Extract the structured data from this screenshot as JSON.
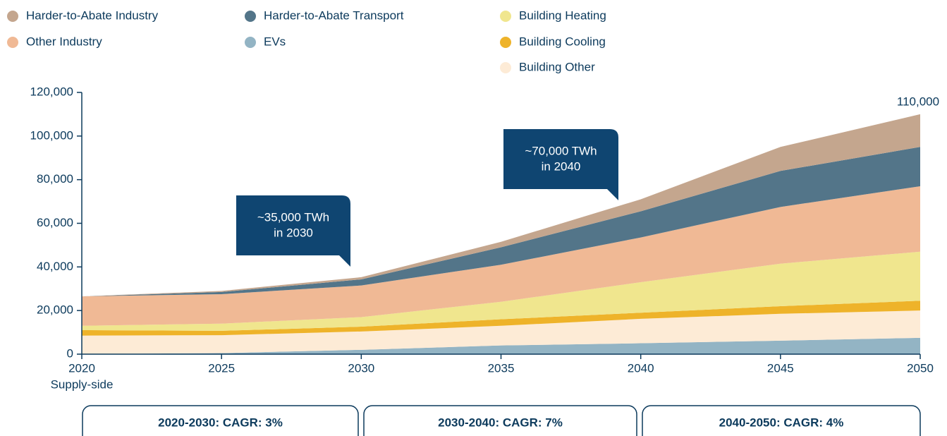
{
  "chart_data": {
    "type": "stacked_area",
    "x": [
      2020,
      2025,
      2030,
      2035,
      2040,
      2045,
      2050
    ],
    "xlim": [
      2020,
      2050
    ],
    "xticks": [
      2020,
      2025,
      2030,
      2035,
      2040,
      2045,
      2050
    ],
    "ylim": [
      0,
      120000
    ],
    "yticks": [
      0,
      {
        "value": 20000,
        "label": "20,000"
      },
      {
        "value": 40000,
        "label": "40,000"
      },
      {
        "value": 60000,
        "label": "60,000"
      },
      {
        "value": 80000,
        "label": "80,000"
      },
      {
        "value": 100000,
        "label": "100,000"
      },
      {
        "value": 120000,
        "label": "120,000"
      }
    ],
    "series": [
      {
        "name": "EVs",
        "color": "#93b4c4",
        "values": [
          0,
          500,
          2000,
          4000,
          5000,
          6200,
          7500
        ]
      },
      {
        "name": "Building Other",
        "color": "#fdebd6",
        "values": [
          8500,
          8200,
          8400,
          9000,
          11200,
          12300,
          12500
        ]
      },
      {
        "name": "Building Cooling",
        "color": "#eeb32a",
        "values": [
          2500,
          2000,
          2200,
          3000,
          2800,
          3500,
          4500
        ]
      },
      {
        "name": "Building Heating",
        "color": "#f0e68e",
        "values": [
          2000,
          3300,
          4400,
          8000,
          14000,
          19500,
          22500
        ]
      },
      {
        "name": "Other Industry",
        "color": "#f0b995",
        "values": [
          13500,
          13500,
          14500,
          17000,
          20500,
          26000,
          30000
        ]
      },
      {
        "name": "Harder-to-Abate Transport",
        "color": "#537589",
        "values": [
          0,
          1000,
          2800,
          8000,
          12000,
          16500,
          18000
        ]
      },
      {
        "name": "Harder-to-Abate Industry",
        "color": "#c4a68e",
        "values": [
          0,
          500,
          1000,
          2500,
          5500,
          11000,
          15000
        ]
      }
    ],
    "x_sublabel": "Supply-side",
    "end_label": "110,000",
    "callouts": [
      [
        "~35,000 TWh",
        "in 2030"
      ],
      [
        "~70,000 TWh",
        "in 2040"
      ]
    ],
    "periods": [
      "2020-2030: CAGR: 3%",
      "2030-2040: CAGR: 7%",
      "2040-2050: CAGR: 4%"
    ]
  }
}
